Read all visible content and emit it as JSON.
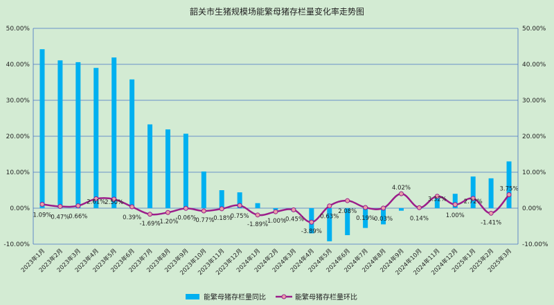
{
  "chart_data": {
    "type": "bar+line",
    "title": "韶关市生猪规模场能繁母猪存栏量变化率走势图",
    "categories": [
      "2023年1月",
      "2023年2月",
      "2023年3月",
      "2023年4月",
      "2023年5月",
      "2023年6月",
      "2023年7月",
      "2023年8月",
      "2023年9月",
      "2023年10月",
      "2023年11月",
      "2023年12月",
      "2024年1月",
      "2024年2月",
      "2024年3月",
      "2024年4月",
      "2024年5月",
      "2024年6月",
      "2024年7月",
      "2024年8月",
      "2024年9月",
      "2024年10月",
      "2024年11月",
      "2024年12月",
      "2025年1月",
      "2025年2月",
      "2025年3月"
    ],
    "yticks": [
      "-10.00%",
      "0.00%",
      "10.00%",
      "20.00%",
      "30.00%",
      "40.00%",
      "50.00%"
    ],
    "ylim": [
      -10,
      50
    ],
    "series": [
      {
        "name": "能繁母猪存栏量同比",
        "type": "bar",
        "color": "#00b0f0",
        "values": [
          44.2,
          41.1,
          40.6,
          39.0,
          41.9,
          35.8,
          23.3,
          21.9,
          20.7,
          10.2,
          5.0,
          4.4,
          1.4,
          -0.5,
          -0.9,
          -7.0,
          -9.2,
          -7.5,
          -5.5,
          -4.5,
          -0.7,
          -0.2,
          2.8,
          4.0,
          8.8,
          8.3,
          13.0
        ]
      },
      {
        "name": "能繁母猪存栏量环比",
        "type": "line",
        "color": "#9b1d8a",
        "marker_color": "#e8a0a8",
        "values": [
          1.09,
          0.47,
          0.66,
          2.61,
          2.5,
          0.39,
          -1.69,
          -1.2,
          -0.06,
          -0.77,
          -0.18,
          0.75,
          -1.89,
          -1.0,
          -0.45,
          -3.89,
          0.63,
          2.08,
          0.19,
          0.03,
          4.02,
          0.14,
          3.32,
          1.0,
          2.72,
          -1.41,
          3.75
        ],
        "labels": [
          "1.09%",
          "0.47%",
          "0.66%",
          "2.61%",
          "2.50%",
          "0.39%",
          "-1.69%",
          "-1.20%",
          "-0.06%",
          "-0.77%",
          "-0.18%",
          "0.75%",
          "-1.89%",
          "-1.00%",
          "-0.45%",
          "-3.89%",
          "0.63%",
          "2.08%",
          "0.19%",
          "0.03%",
          "4.02%",
          "0.14%",
          "3.32%",
          "1.00%",
          "2.72%",
          "-1.41%",
          "3.75%"
        ]
      }
    ],
    "legend": "bottom-center"
  }
}
